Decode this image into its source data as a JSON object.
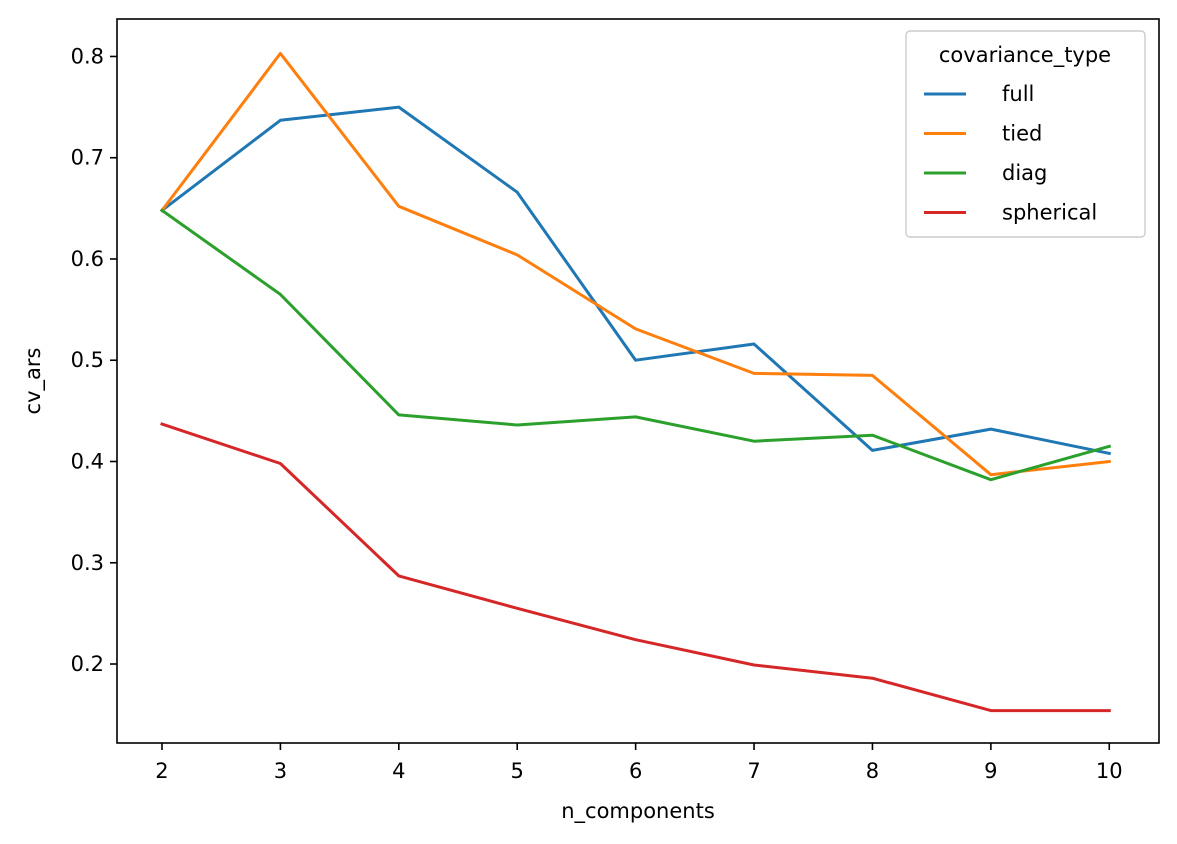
{
  "chart_data": {
    "type": "line",
    "xlabel": "n_components",
    "ylabel": "cv_ars",
    "x": [
      2,
      3,
      4,
      5,
      6,
      7,
      8,
      9,
      10
    ],
    "xticks": [
      "2",
      "3",
      "4",
      "5",
      "6",
      "7",
      "8",
      "9",
      "10"
    ],
    "yticks": [
      "0.2",
      "0.3",
      "0.4",
      "0.5",
      "0.6",
      "0.7",
      "0.8"
    ],
    "xlim": [
      1.62,
      10.42
    ],
    "ylim": [
      0.122,
      0.837
    ],
    "grid": false,
    "legend": {
      "title": "covariance_type",
      "placement": "top-right"
    },
    "series": [
      {
        "name": "full",
        "color": "#1f77b4",
        "values": [
          0.648,
          0.737,
          0.75,
          0.666,
          0.5,
          0.516,
          0.411,
          0.432,
          0.408
        ]
      },
      {
        "name": "tied",
        "color": "#ff7f0e",
        "values": [
          0.648,
          0.803,
          0.652,
          0.604,
          0.531,
          0.487,
          0.485,
          0.387,
          0.4
        ]
      },
      {
        "name": "diag",
        "color": "#2ca02c",
        "values": [
          0.648,
          0.565,
          0.446,
          0.436,
          0.444,
          0.42,
          0.426,
          0.382,
          0.415
        ]
      },
      {
        "name": "spherical",
        "color": "#d62728",
        "values": [
          0.437,
          0.398,
          0.287,
          0.255,
          0.224,
          0.199,
          0.186,
          0.154,
          0.154
        ]
      }
    ]
  }
}
